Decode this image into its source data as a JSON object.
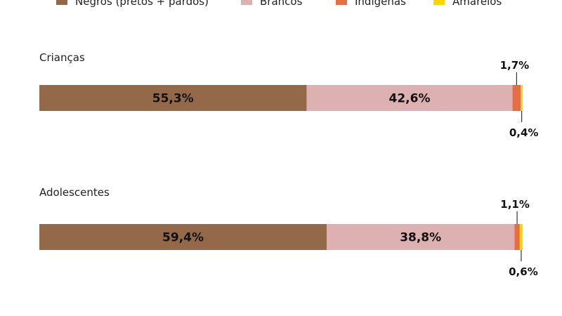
{
  "chart_data": {
    "type": "bar",
    "orientation": "horizontal",
    "stacked": true,
    "normalized_percent": true,
    "legend_position": "top",
    "series": [
      {
        "name": "Negros (pretos + pardos)",
        "color": "#93694a"
      },
      {
        "name": "Brancos",
        "color": "#ddb0b1"
      },
      {
        "name": "Indígenas",
        "color": "#e46f47"
      },
      {
        "name": "Amarelos",
        "color": "#fed503"
      }
    ],
    "groups": [
      {
        "label": "Crianças",
        "values": [
          55.3,
          42.6,
          1.7,
          0.4
        ],
        "value_labels": [
          "55,3%",
          "42,6%",
          "1,7%",
          "0,4%"
        ]
      },
      {
        "label": "Adolescentes",
        "values": [
          59.4,
          38.8,
          1.1,
          0.6
        ],
        "value_labels": [
          "59,4%",
          "38,8%",
          "1,1%",
          "0,6%"
        ]
      }
    ]
  }
}
